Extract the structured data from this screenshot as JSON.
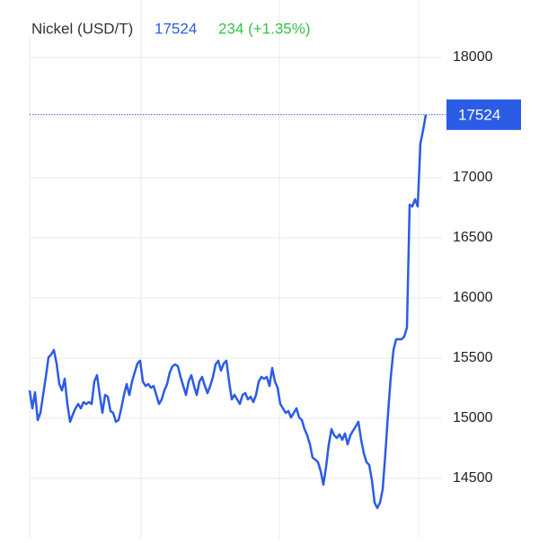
{
  "chart_data": {
    "type": "line",
    "title": "Nickel (USD/T)",
    "price": 17524,
    "change": "234 (+1.35%)",
    "color": "#2b5ce6",
    "ylim": [
      14000,
      18200
    ],
    "yticks": [
      14500,
      15000,
      15500,
      16000,
      16500,
      17000,
      17500,
      18000
    ],
    "grid": true,
    "values": [
      15231,
      15082,
      15216,
      14985,
      15045,
      15194,
      15343,
      15507,
      15530,
      15567,
      15455,
      15284,
      15231,
      15328,
      15119,
      14970,
      15030,
      15082,
      15119,
      15082,
      15134,
      15119,
      15134,
      15119,
      15306,
      15358,
      15194,
      15045,
      15194,
      15179,
      15060,
      15045,
      14970,
      14985,
      15082,
      15194,
      15284,
      15194,
      15306,
      15381,
      15455,
      15478,
      15306,
      15269,
      15284,
      15254,
      15269,
      15194,
      15119,
      15157,
      15231,
      15284,
      15381,
      15433,
      15448,
      15433,
      15343,
      15269,
      15194,
      15306,
      15358,
      15269,
      15194,
      15306,
      15343,
      15269,
      15209,
      15269,
      15343,
      15448,
      15478,
      15396,
      15455,
      15478,
      15306,
      15157,
      15194,
      15157,
      15119,
      15194,
      15209,
      15157,
      15179,
      15134,
      15194,
      15306,
      15343,
      15328,
      15343,
      15269,
      15418,
      15306,
      15254,
      15119,
      15082,
      15045,
      15060,
      15007,
      15045,
      15082,
      15007,
      14985,
      14910,
      14858,
      14783,
      14672,
      14657,
      14634,
      14560,
      14448,
      14597,
      14783,
      14910,
      14858,
      14836,
      14866,
      14821,
      14873,
      14783,
      14858,
      14896,
      14933,
      14970,
      14821,
      14709,
      14634,
      14612,
      14485,
      14298,
      14254,
      14298,
      14410,
      14709,
      15045,
      15343,
      15567,
      15657,
      15657,
      15657,
      15679,
      15754,
      16776,
      16761,
      16821,
      16761,
      17284,
      17396,
      17524
    ]
  }
}
